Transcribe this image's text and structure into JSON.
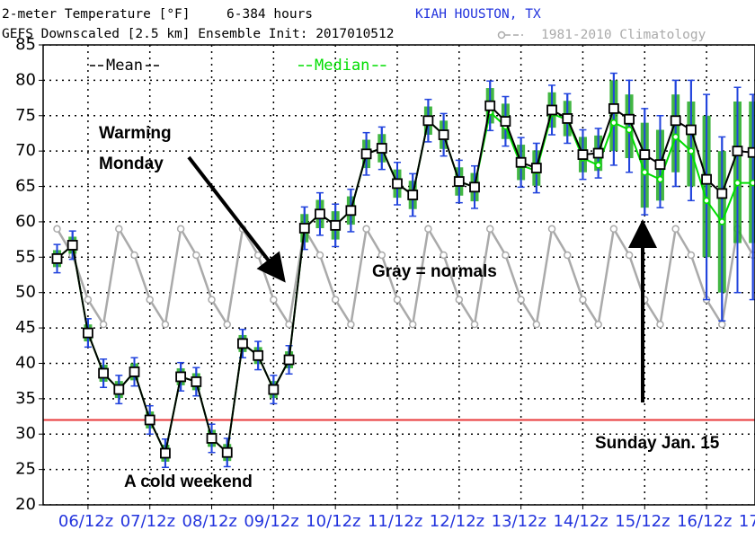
{
  "chart_data": {
    "type": "ensemble",
    "title": "2-meter Temperature [°F]",
    "hours": "6-384 hours",
    "station": "KIAH HOUSTON, TX",
    "subtitle": "GEFS Downscaled [2.5 km] Ensemble Init: 2017010512",
    "annotations": [
      "Warming",
      "Monday",
      "Gray = normals",
      "A cold weekend",
      "Sunday Jan. 15"
    ],
    "x": [
      12,
      18,
      24,
      30,
      36,
      42,
      48,
      54,
      60,
      66,
      72,
      78,
      84,
      90,
      96,
      102,
      108,
      114,
      120,
      126,
      132,
      138,
      144,
      150,
      156,
      162,
      168,
      174,
      180,
      186,
      192,
      198,
      204,
      210,
      216,
      222,
      228,
      234,
      240,
      246,
      252,
      258,
      264,
      270,
      276,
      282
    ],
    "xlim": [
      6.6,
      282.8
    ],
    "xticks": [
      {
        "value": 24,
        "label": "06/12z"
      },
      {
        "value": 48,
        "label": "07/12z"
      },
      {
        "value": 72,
        "label": "08/12z"
      },
      {
        "value": 96,
        "label": "09/12z"
      },
      {
        "value": 120,
        "label": "10/12z"
      },
      {
        "value": 144,
        "label": "11/12z"
      },
      {
        "value": 168,
        "label": "12/12z"
      },
      {
        "value": 192,
        "label": "13/12z"
      },
      {
        "value": 216,
        "label": "14/12z"
      },
      {
        "value": 240,
        "label": "15/12z"
      },
      {
        "value": 264,
        "label": "16/12z"
      },
      {
        "value": 288,
        "label": "17"
      }
    ],
    "ylim": [
      20,
      85
    ],
    "yticks": [
      20,
      25,
      30,
      35,
      40,
      45,
      50,
      55,
      60,
      65,
      70,
      75,
      80,
      85
    ],
    "grid": true,
    "reference_line": {
      "value": 32,
      "color": "#e8383a"
    },
    "series": [
      {
        "name": "Mean",
        "color": "#000000",
        "values": [
          54.8,
          56.7,
          44.3,
          38.6,
          36.3,
          38.8,
          32.0,
          27.3,
          38.1,
          37.4,
          29.4,
          27.4,
          42.8,
          41.1,
          36.3,
          40.5,
          59.1,
          61.1,
          59.5,
          61.6,
          69.6,
          70.4,
          65.4,
          63.8,
          74.3,
          72.3,
          65.7,
          64.9,
          76.4,
          74.2,
          68.4,
          67.6,
          75.8,
          74.6,
          69.5,
          69.7,
          76.0,
          74.5,
          69.5,
          68.1,
          74.3,
          73.0,
          66.0,
          64.0,
          70.0,
          69.8
        ]
      },
      {
        "name": "Median",
        "color": "#00dd00",
        "values": [
          54.8,
          56.7,
          44.3,
          38.6,
          36.3,
          38.8,
          32.0,
          27.3,
          38.1,
          37.4,
          29.4,
          27.4,
          42.8,
          41.1,
          36.3,
          40.5,
          59.1,
          61.1,
          59.5,
          61.6,
          69.6,
          70.4,
          65.4,
          63.8,
          74.3,
          72.3,
          65.7,
          64.9,
          75.5,
          73.5,
          68.0,
          67.2,
          75.3,
          74.4,
          69.0,
          68.0,
          74.0,
          73.0,
          67.0,
          66.0,
          72.0,
          70.0,
          63.0,
          60.0,
          65.5,
          65.5
        ]
      },
      {
        "name": "1981-2010 Climatology",
        "color": "#aaaaaa",
        "values": [
          59,
          55.3,
          49,
          45.5,
          59,
          55.3,
          49,
          45.5,
          59,
          55.3,
          49,
          45.5,
          59,
          55.3,
          49,
          45.5,
          59,
          55.3,
          49,
          45.5,
          59,
          55.3,
          49,
          45.5,
          59,
          55.3,
          49,
          45.5,
          59,
          55.3,
          49,
          45.5,
          59,
          55.3,
          49,
          45.5,
          59,
          55.3,
          49,
          45.5,
          59,
          55.3,
          49,
          45.5,
          59,
          55.3
        ]
      }
    ],
    "ensemble": {
      "whisker_color": "#2244dd",
      "box_color": "#22aa22",
      "whisker_low": [
        52.8,
        54.7,
        42.3,
        36.6,
        34.3,
        36.8,
        30.0,
        25.3,
        36.1,
        35.4,
        27.4,
        25.4,
        40.8,
        39.1,
        34.3,
        38.5,
        56.1,
        58.1,
        56.5,
        58.6,
        66.6,
        67.4,
        62.4,
        60.8,
        71.3,
        69.3,
        62.7,
        61.9,
        72.9,
        70.7,
        64.9,
        64.1,
        72.3,
        71.1,
        66.0,
        66.2,
        68,
        67,
        61,
        62,
        65,
        63,
        49,
        46,
        50,
        49
      ],
      "whisker_high": [
        56.8,
        58.7,
        46.3,
        40.6,
        38.3,
        40.8,
        34.0,
        29.3,
        40.1,
        39.4,
        31.4,
        29.4,
        44.8,
        43.1,
        38.3,
        42.5,
        62.1,
        64.1,
        62.5,
        64.6,
        72.6,
        73.4,
        68.4,
        66.8,
        77.3,
        75.3,
        68.7,
        67.9,
        79.9,
        77.7,
        71.9,
        71.1,
        79.3,
        78.1,
        73.0,
        73.2,
        81,
        80,
        76,
        75,
        80,
        80,
        78,
        72,
        79,
        78
      ],
      "box_low": [
        53.6,
        55.5,
        43.1,
        37.4,
        35.1,
        37.6,
        30.8,
        26.1,
        36.9,
        36.2,
        28.2,
        26.2,
        41.6,
        39.9,
        35.1,
        39.3,
        57.1,
        59.1,
        57.5,
        59.6,
        67.6,
        68.4,
        63.4,
        61.8,
        72.3,
        70.3,
        63.7,
        62.9,
        73.9,
        71.7,
        65.9,
        65.1,
        73.3,
        72.1,
        67.0,
        67.2,
        70,
        69,
        62,
        63,
        67,
        65,
        55,
        50,
        57,
        57
      ],
      "box_high": [
        56.0,
        57.9,
        45.5,
        39.8,
        37.5,
        40.0,
        33.2,
        28.5,
        39.3,
        38.6,
        30.6,
        28.6,
        44.0,
        42.3,
        37.5,
        41.7,
        61.1,
        63.1,
        61.5,
        63.6,
        71.6,
        72.4,
        67.4,
        65.8,
        76.3,
        74.3,
        67.7,
        66.9,
        78.9,
        76.7,
        70.9,
        70.1,
        78.3,
        77.1,
        72.0,
        72.2,
        80,
        78,
        74,
        73,
        78,
        77,
        75,
        70,
        77,
        77
      ]
    }
  }
}
